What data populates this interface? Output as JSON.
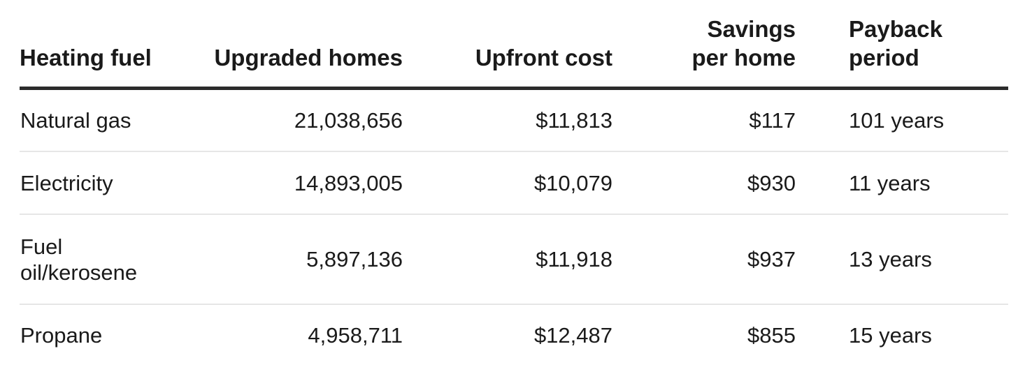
{
  "table": {
    "headers": {
      "fuel": "Heating fuel",
      "homes": "Upgraded homes",
      "cost": "Upfront cost",
      "savings_line1": "Savings",
      "savings_line2": "per home",
      "payback_line1": "Payback",
      "payback_line2": "period"
    },
    "rows": [
      {
        "fuel": "Natural gas",
        "homes": "21,038,656",
        "cost": "$11,813",
        "savings": "$117",
        "payback": "101 years"
      },
      {
        "fuel": "Electricity",
        "homes": "14,893,005",
        "cost": "$10,079",
        "savings": "$930",
        "payback": "11 years"
      },
      {
        "fuel": "Fuel oil/kerosene",
        "homes": "5,897,136",
        "cost": "$11,918",
        "savings": "$937",
        "payback": "13 years"
      },
      {
        "fuel": "Propane",
        "homes": "4,958,711",
        "cost": "$12,487",
        "savings": "$855",
        "payback": "15 years"
      }
    ]
  },
  "colors": {
    "text": "#1a1a1a",
    "header_rule": "#2b2b2b",
    "row_divider": "#e6e6e6",
    "background": "#ffffff"
  }
}
